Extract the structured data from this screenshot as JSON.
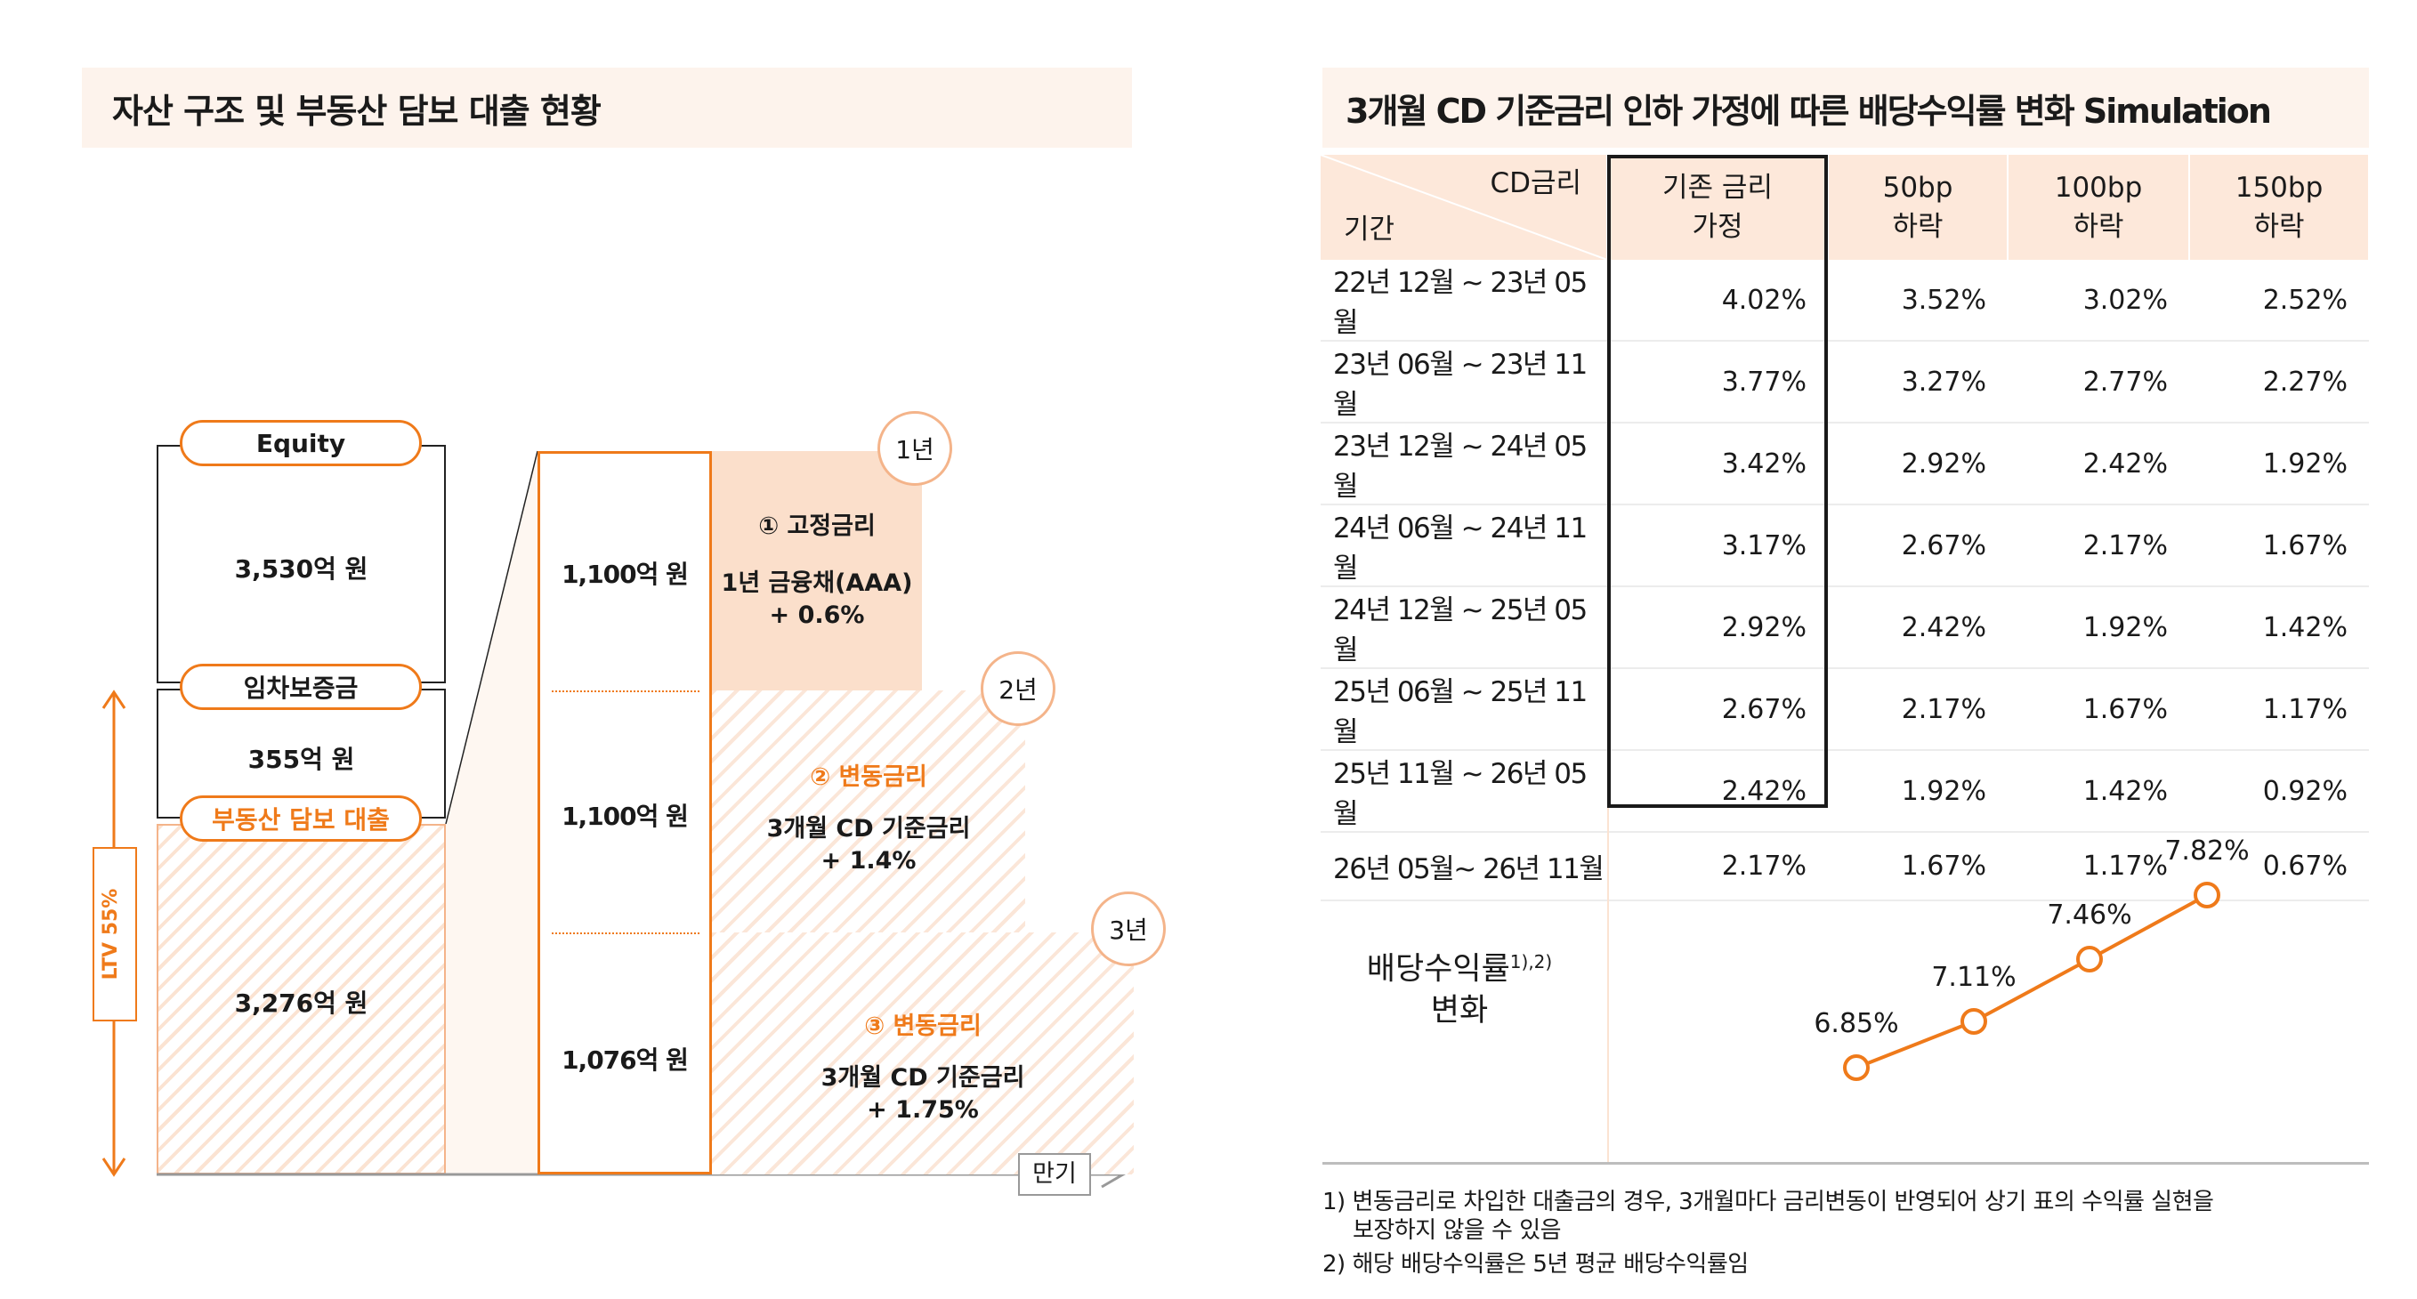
{
  "left_panel": {
    "title": "자산 구조 및 부동산 담보 대출 현황",
    "equity_label": "Equity",
    "equity_value": "3,530억 원",
    "deposit_label": "임차보증금",
    "deposit_value": "355억 원",
    "loan_label": "부동산 담보 대출",
    "loan_value": "3,276억 원",
    "ltv_label": "LTV 55%",
    "tranches": [
      {
        "amount": "1,100억 원",
        "term": "1년",
        "type": "① 고정금리",
        "rate_line1": "1년 금융채(AAA)",
        "rate_line2": "+ 0.6%"
      },
      {
        "amount": "1,100억 원",
        "term": "2년",
        "type": "② 변동금리",
        "rate_line1": "3개월 CD 기준금리",
        "rate_line2": "+ 1.4%"
      },
      {
        "amount": "1,076억 원",
        "term": "3년",
        "type": "③ 변동금리",
        "rate_line1": "3개월 CD 기준금리",
        "rate_line2": "+ 1.75%"
      }
    ],
    "maturity_label": "만기"
  },
  "right_panel": {
    "title": "3개월 CD 기준금리 인하 가정에 따른 배당수익률 변화 Simulation",
    "table": {
      "corner_top": "CD금리",
      "corner_bottom": "기간",
      "headers": [
        {
          "line1": "기존 금리",
          "line2": "가정"
        },
        {
          "line1": "50bp",
          "line2": "하락"
        },
        {
          "line1": "100bp",
          "line2": "하락"
        },
        {
          "line1": "150bp",
          "line2": "하락"
        }
      ],
      "rows": [
        {
          "period": "22년 12월 ~ 23년 05월",
          "values": [
            "4.02%",
            "3.52%",
            "3.02%",
            "2.52%"
          ]
        },
        {
          "period": "23년 06월 ~ 23년 11월",
          "values": [
            "3.77%",
            "3.27%",
            "2.77%",
            "2.27%"
          ]
        },
        {
          "period": "23년 12월 ~ 24년 05월",
          "values": [
            "3.42%",
            "2.92%",
            "2.42%",
            "1.92%"
          ]
        },
        {
          "period": "24년 06월 ~ 24년 11월",
          "values": [
            "3.17%",
            "2.67%",
            "2.17%",
            "1.67%"
          ]
        },
        {
          "period": "24년 12월 ~ 25년 05월",
          "values": [
            "2.92%",
            "2.42%",
            "1.92%",
            "1.42%"
          ]
        },
        {
          "period": "25년 06월 ~ 25년 11월",
          "values": [
            "2.67%",
            "2.17%",
            "1.67%",
            "1.17%"
          ]
        },
        {
          "period": "25년 11월 ~ 26년 05월",
          "values": [
            "2.42%",
            "1.92%",
            "1.42%",
            "0.92%"
          ]
        },
        {
          "period": "26년 05월~ 26년 11월",
          "values": [
            "2.17%",
            "1.67%",
            "1.17%",
            "0.67%"
          ]
        }
      ]
    },
    "yield_label_line1": "배당수익률",
    "yield_label_sup": "1),2)",
    "yield_label_line2": "변화",
    "footnotes": [
      "1) 변동금리로 차입한 대출금의 경우, 3개월마다 금리변동이 반영되어 상기 표의 수익률 실현을",
      "보장하지 않을 수 있음",
      "2) 해당 배당수익률은 5년 평균 배당수익률임"
    ]
  },
  "chart_data": {
    "type": "line",
    "categories": [
      "기존 금리 가정",
      "50bp 하락",
      "100bp 하락",
      "150bp 하락"
    ],
    "series": [
      {
        "values": [
          6.85,
          7.11,
          7.46,
          7.82
        ],
        "labels": [
          "6.85%",
          "7.11%",
          "7.46%",
          "7.82%"
        ]
      }
    ],
    "ylim": [
      6.5,
      8.0
    ],
    "color": "#ef7a1a",
    "grid": false
  }
}
